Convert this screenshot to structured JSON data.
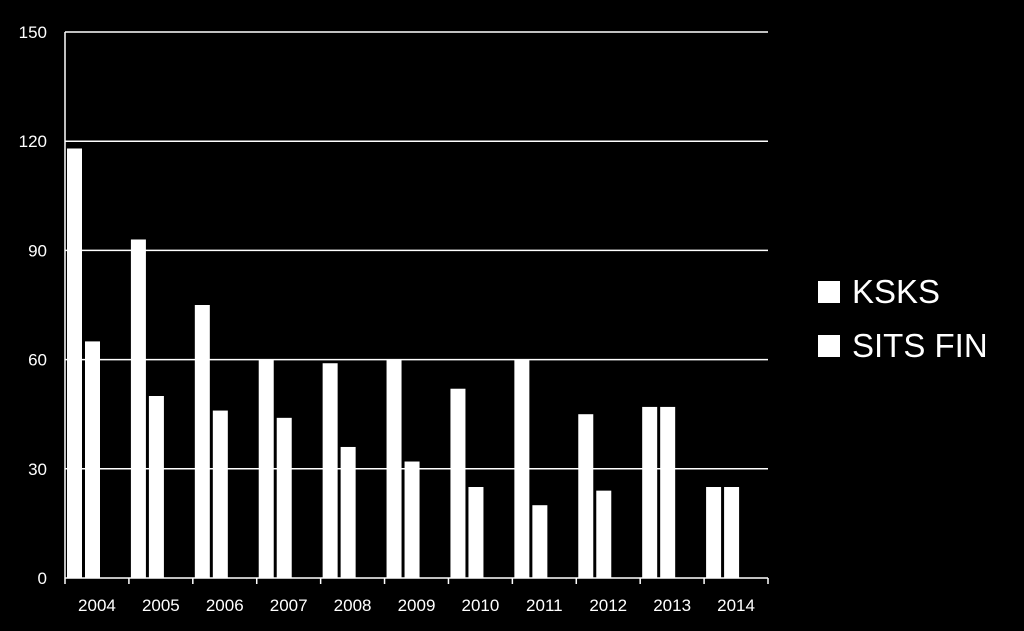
{
  "chart_data": {
    "type": "bar",
    "categories": [
      "2004",
      "2005",
      "2006",
      "2007",
      "2008",
      "2009",
      "2010",
      "2011",
      "2012",
      "2013",
      "2014"
    ],
    "series": [
      {
        "name": "KSKS",
        "values": [
          118,
          93,
          75,
          60,
          59,
          60,
          52,
          60,
          45,
          47,
          25
        ]
      },
      {
        "name": "SITS FIN",
        "values": [
          65,
          50,
          46,
          44,
          36,
          32,
          25,
          20,
          24,
          47,
          25
        ]
      }
    ],
    "ylim": [
      0,
      150
    ],
    "yticks": [
      "0",
      "30",
      "60",
      "90",
      "120",
      "150"
    ],
    "grid": true,
    "legend_position": "right",
    "colors": {
      "background": "#000000",
      "bars": "#ffffff",
      "grid": "#ffffff",
      "text": "#ffffff"
    }
  },
  "legend": {
    "items": [
      {
        "label": "KSKS"
      },
      {
        "label": "SITS FIN"
      }
    ]
  }
}
